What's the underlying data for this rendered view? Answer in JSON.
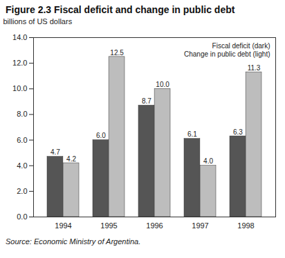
{
  "chart_data": {
    "type": "bar",
    "title": "Figure 2.3 Fiscal deficit and change in public debt",
    "y_label": "billions of US dollars",
    "categories": [
      "1994",
      "1995",
      "1996",
      "1997",
      "1998"
    ],
    "series": [
      {
        "name": "Fiscal deficit (dark)",
        "color": "#555555",
        "values": [
          4.7,
          6.0,
          8.7,
          6.1,
          6.3
        ],
        "value_labels": [
          "4.7",
          "6.0",
          "8.7",
          "6.1",
          "6.3"
        ]
      },
      {
        "name": "Change in public debt (light)",
        "color": "#bdbdbd",
        "values": [
          4.2,
          12.5,
          10.0,
          4.0,
          11.3
        ],
        "value_labels": [
          "4.2",
          "12.5",
          "10.0",
          "4.0",
          "11.3"
        ]
      }
    ],
    "ylim": [
      0,
      14
    ],
    "yticks": [
      {
        "value": 0,
        "label": "0.0"
      },
      {
        "value": 2,
        "label": "2.0"
      },
      {
        "value": 4,
        "label": "4.0"
      },
      {
        "value": 6,
        "label": "6.0"
      },
      {
        "value": 8,
        "label": "8.0"
      },
      {
        "value": 10,
        "label": "10.0"
      },
      {
        "value": 12,
        "label": "12.0"
      },
      {
        "value": 14,
        "label": "14.0"
      }
    ],
    "grid": false,
    "legend": "top-right",
    "data_labels": true,
    "source": "Source: Economic Ministry of Argentina."
  }
}
